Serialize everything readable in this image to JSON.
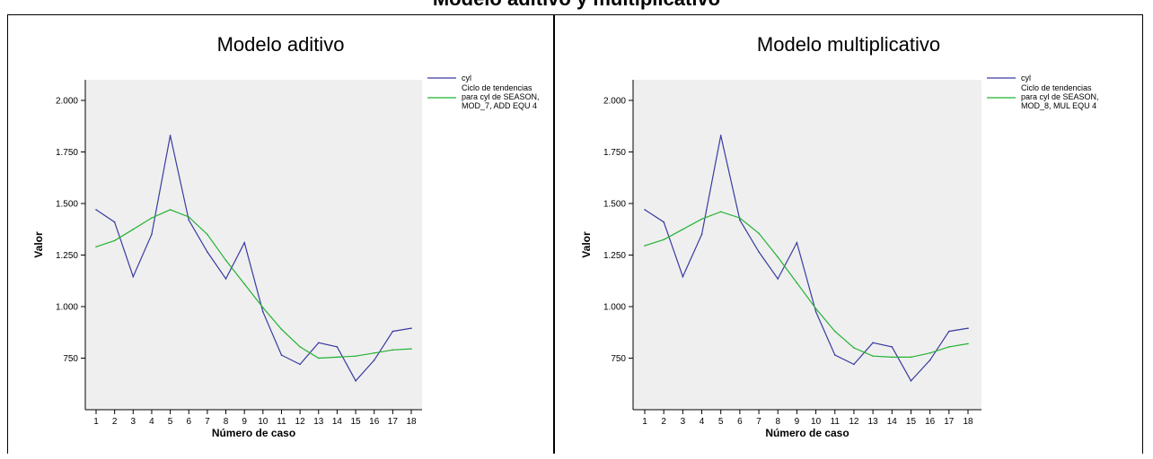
{
  "page_title": "Modelo aditivo y multiplicativo",
  "colors": {
    "series_observed": "#3A3CA0",
    "series_trend": "#22B232",
    "plot_background": "#EFEFEF"
  },
  "chart_data": [
    {
      "type": "line",
      "title": "Modelo aditivo",
      "xlabel": "Número de caso",
      "ylabel": "Valor",
      "x": [
        1,
        2,
        3,
        4,
        5,
        6,
        7,
        8,
        9,
        10,
        11,
        12,
        13,
        14,
        15,
        16,
        17,
        18
      ],
      "ylim": [
        500,
        2100
      ],
      "y_ticks": [
        750,
        1000,
        1250,
        1500,
        1750,
        2000
      ],
      "y_tick_labels": [
        "750",
        "1.000",
        "1.250",
        "1.500",
        "1.750",
        "2.000"
      ],
      "legend_position": "top-right",
      "grid": false,
      "series": [
        {
          "name": "cyl",
          "color": "#3A3CA0",
          "values": [
            1470,
            1410,
            1145,
            1350,
            1830,
            1420,
            1265,
            1135,
            1310,
            975,
            765,
            720,
            825,
            805,
            640,
            740,
            880,
            895
          ]
        },
        {
          "name": "Ciclo de tendencias para cyl de SEASON, MOD_7, ADD EQU 4",
          "legend_lines": [
            "Ciclo de tendencias",
            "para cyl de SEASON,",
            "MOD_7, ADD EQU 4"
          ],
          "color": "#22B232",
          "values": [
            1290,
            1320,
            1375,
            1430,
            1470,
            1435,
            1350,
            1225,
            1110,
            995,
            890,
            805,
            750,
            755,
            760,
            775,
            790,
            795
          ]
        }
      ]
    },
    {
      "type": "line",
      "title": "Modelo multiplicativo",
      "xlabel": "Número de caso",
      "ylabel": "Valor",
      "x": [
        1,
        2,
        3,
        4,
        5,
        6,
        7,
        8,
        9,
        10,
        11,
        12,
        13,
        14,
        15,
        16,
        17,
        18
      ],
      "ylim": [
        500,
        2100
      ],
      "y_ticks": [
        750,
        1000,
        1250,
        1500,
        1750,
        2000
      ],
      "y_tick_labels": [
        "750",
        "1.000",
        "1.250",
        "1.500",
        "1.750",
        "2.000"
      ],
      "legend_position": "top-right",
      "grid": false,
      "series": [
        {
          "name": "cyl",
          "color": "#3A3CA0",
          "values": [
            1470,
            1410,
            1145,
            1350,
            1830,
            1420,
            1265,
            1135,
            1310,
            975,
            765,
            720,
            825,
            805,
            640,
            740,
            880,
            895
          ]
        },
        {
          "name": "Ciclo de tendencias para cyl de SEASON, MOD_8, MUL EQU 4",
          "legend_lines": [
            "Ciclo de tendencias",
            "para cyl de SEASON,",
            "MOD_8, MUL EQU 4"
          ],
          "color": "#22B232",
          "values": [
            1295,
            1325,
            1375,
            1425,
            1460,
            1430,
            1355,
            1240,
            1115,
            990,
            880,
            800,
            760,
            755,
            755,
            775,
            805,
            820
          ]
        }
      ]
    }
  ]
}
